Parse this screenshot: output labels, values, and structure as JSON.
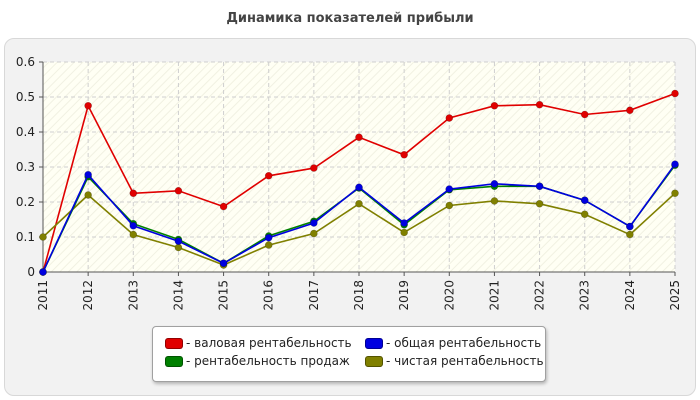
{
  "chart_data": {
    "type": "line",
    "title": "Динамика показателей прибыли",
    "xlabel": "",
    "ylabel": "",
    "x": [
      "2011",
      "2012",
      "2013",
      "2014",
      "2015",
      "2016",
      "2017",
      "2018",
      "2019",
      "2020",
      "2021",
      "2022",
      "2023",
      "2024",
      "2025"
    ],
    "ylim": [
      0,
      0.6
    ],
    "yticks": [
      "0",
      "0.1",
      "0.2",
      "0.3",
      "0.4",
      "0.5",
      "0.6"
    ],
    "grid": true,
    "legend_position": "bottom",
    "series": [
      {
        "name": "- валовая рентабельность",
        "color": "#e00000",
        "values": [
          0,
          0.475,
          0.225,
          0.232,
          0.187,
          0.275,
          0.297,
          0.385,
          0.335,
          0.44,
          0.475,
          0.478,
          0.45,
          0.462,
          0.51
        ]
      },
      {
        "name": "- рентабельность продаж",
        "color": "#008000",
        "values": [
          0,
          0.272,
          0.138,
          0.093,
          0.025,
          0.103,
          0.145,
          0.24,
          0.135,
          0.235,
          0.245,
          0.245,
          0.205,
          0.13,
          0.305
        ]
      },
      {
        "name": "- общая рентабельность",
        "color": "#0000e0",
        "values": [
          0,
          0.278,
          0.132,
          0.088,
          0.025,
          0.098,
          0.14,
          0.242,
          0.14,
          0.237,
          0.252,
          0.245,
          0.205,
          0.13,
          0.308
        ]
      },
      {
        "name": "- чистая рентабельность",
        "color": "#808000",
        "values": [
          0.1,
          0.22,
          0.107,
          0.07,
          0.02,
          0.077,
          0.11,
          0.195,
          0.113,
          0.19,
          0.203,
          0.195,
          0.165,
          0.107,
          0.225
        ]
      }
    ]
  }
}
